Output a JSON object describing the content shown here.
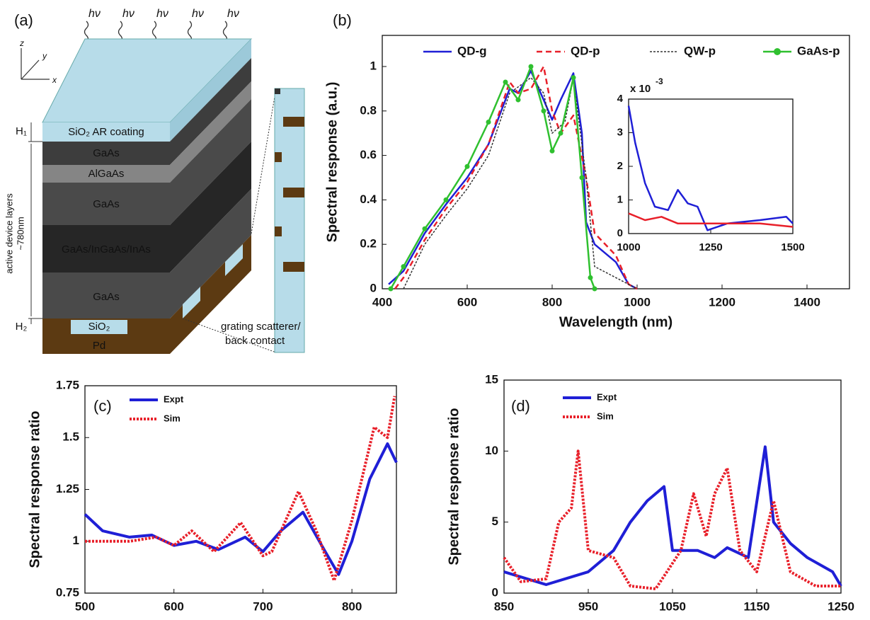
{
  "panel_a": {
    "label": "(a)",
    "photons": [
      "hν",
      "hν",
      "hν",
      "hν",
      "hν"
    ],
    "axes": [
      "z",
      "y",
      "x"
    ],
    "layers": [
      "SiO₂ AR coating",
      "GaAs",
      "AlGaAs",
      "GaAs",
      "GaAs/InGaAs/InAs",
      "GaAs"
    ],
    "oxide": "SiO₂",
    "metal": "Pd",
    "h1": "H₁",
    "h2": "H₂",
    "active_label": [
      "active device layers",
      "~780nm"
    ],
    "grating_label": [
      "grating scatterer/",
      "back contact"
    ]
  },
  "chart_data": [
    {
      "type": "line",
      "label": "(b)",
      "xlabel": "Wavelength (nm)",
      "ylabel": "Spectral response (a.u.)",
      "xlim": [
        400,
        1500
      ],
      "ylim": [
        0,
        1.14
      ],
      "xticks": [
        400,
        600,
        800,
        1000,
        1200,
        1400
      ],
      "yticks": [
        0,
        0.2,
        0.4,
        0.6,
        0.8,
        1
      ],
      "legend": "top",
      "series": [
        {
          "name": "QD-g",
          "color": "#1f1fd6",
          "dash": "solid",
          "x": [
            415,
            450,
            500,
            550,
            600,
            650,
            700,
            720,
            750,
            780,
            800,
            820,
            850,
            870,
            880,
            900,
            950,
            980,
            1000
          ],
          "values": [
            0.02,
            0.08,
            0.25,
            0.38,
            0.5,
            0.65,
            0.9,
            0.88,
            0.98,
            0.85,
            0.76,
            0.85,
            0.97,
            0.7,
            0.3,
            0.2,
            0.12,
            0.02,
            0
          ]
        },
        {
          "name": "QD-p",
          "color": "#e8202a",
          "dash": "dashed",
          "x": [
            430,
            450,
            500,
            550,
            600,
            650,
            700,
            720,
            750,
            780,
            800,
            820,
            850,
            880,
            900,
            950,
            980,
            1000
          ],
          "values": [
            0,
            0.05,
            0.22,
            0.36,
            0.48,
            0.65,
            0.93,
            0.88,
            0.9,
            1.0,
            0.8,
            0.7,
            0.78,
            0.5,
            0.25,
            0.15,
            0.02,
            0
          ]
        },
        {
          "name": "QW-p",
          "color": "#333333",
          "dash": "dotted",
          "x": [
            450,
            500,
            550,
            600,
            650,
            700,
            750,
            780,
            800,
            830,
            850,
            880,
            900,
            950,
            1000
          ],
          "values": [
            0,
            0.2,
            0.33,
            0.45,
            0.6,
            0.88,
            0.95,
            0.88,
            0.7,
            0.75,
            0.95,
            0.5,
            0.1,
            0.05,
            0
          ]
        },
        {
          "name": "GaAs-p",
          "color": "#2fc02f",
          "dash": "solid",
          "marker": "circle",
          "x": [
            420,
            450,
            500,
            550,
            600,
            650,
            690,
            720,
            750,
            780,
            800,
            820,
            850,
            870,
            890,
            900
          ],
          "values": [
            0,
            0.1,
            0.27,
            0.4,
            0.55,
            0.75,
            0.93,
            0.85,
            1.0,
            0.8,
            0.62,
            0.7,
            0.95,
            0.5,
            0.05,
            0
          ]
        }
      ]
    },
    {
      "type": "line",
      "xlim": [
        1000,
        1500
      ],
      "ylim": [
        0,
        4
      ],
      "xticks": [
        1000,
        1250,
        1500
      ],
      "yticks": [
        0,
        1,
        2,
        3,
        4
      ],
      "y_scale": "x 10",
      "y_scale_exponent": "-3",
      "series": [
        {
          "color": "#1f1fd6",
          "dash": "solid",
          "x": [
            1000,
            1020,
            1050,
            1080,
            1120,
            1150,
            1180,
            1210,
            1240,
            1300,
            1400,
            1480,
            1500
          ],
          "values": [
            3.8,
            2.7,
            1.5,
            0.8,
            0.7,
            1.3,
            0.9,
            0.8,
            0.1,
            0.3,
            0.4,
            0.5,
            0.3
          ]
        },
        {
          "color": "#e8202a",
          "dash": "solid",
          "x": [
            1000,
            1050,
            1100,
            1150,
            1200,
            1300,
            1400,
            1500
          ],
          "values": [
            0.6,
            0.4,
            0.5,
            0.3,
            0.3,
            0.3,
            0.3,
            0.2
          ]
        }
      ]
    },
    {
      "type": "line",
      "label": "(c)",
      "xlabel": "Wavelength (nm)",
      "ylabel": "Spectral response ratio",
      "xlim": [
        500,
        850
      ],
      "ylim": [
        0.75,
        1.75
      ],
      "xticks": [
        500,
        600,
        700,
        800
      ],
      "yticks": [
        0.75,
        1,
        1.25,
        1.5,
        1.75
      ],
      "legend": "upper left",
      "series": [
        {
          "name": "Expt",
          "color": "#1f1fd6",
          "dash": "solid",
          "x": [
            500,
            520,
            550,
            575,
            600,
            625,
            650,
            680,
            700,
            720,
            745,
            770,
            785,
            800,
            820,
            840,
            850
          ],
          "values": [
            1.13,
            1.05,
            1.02,
            1.03,
            0.98,
            1.0,
            0.96,
            1.02,
            0.95,
            1.05,
            1.14,
            0.95,
            0.84,
            1.0,
            1.3,
            1.47,
            1.38
          ]
        },
        {
          "name": "Sim",
          "color": "#e8202a",
          "dash": "dotted",
          "x": [
            500,
            530,
            550,
            580,
            600,
            620,
            645,
            675,
            700,
            710,
            740,
            760,
            780,
            800,
            825,
            840,
            848
          ],
          "values": [
            1.0,
            1.0,
            1.0,
            1.02,
            0.98,
            1.05,
            0.95,
            1.09,
            0.93,
            0.95,
            1.24,
            1.05,
            0.81,
            1.1,
            1.55,
            1.5,
            1.7
          ]
        }
      ]
    },
    {
      "type": "line",
      "label": "(d)",
      "xlabel": "Wavelength (nm)",
      "ylabel": "Spectral response ratio",
      "xlim": [
        850,
        1250
      ],
      "ylim": [
        0,
        15
      ],
      "xticks": [
        850,
        950,
        1050,
        1150,
        1250
      ],
      "yticks": [
        0,
        5,
        10,
        15
      ],
      "legend": "upper left",
      "series": [
        {
          "name": "Expt",
          "color": "#1f1fd6",
          "dash": "solid",
          "x": [
            850,
            900,
            950,
            980,
            1000,
            1020,
            1040,
            1050,
            1080,
            1100,
            1115,
            1140,
            1160,
            1170,
            1190,
            1210,
            1240,
            1250
          ],
          "values": [
            1.5,
            0.6,
            1.5,
            3,
            5,
            6.5,
            7.5,
            3,
            3,
            2.5,
            3.2,
            2.5,
            10.3,
            5,
            3.5,
            2.5,
            1.5,
            0.5
          ]
        },
        {
          "name": "Sim",
          "color": "#e8202a",
          "dash": "dotted",
          "x": [
            850,
            870,
            900,
            915,
            930,
            938,
            950,
            980,
            1000,
            1030,
            1060,
            1075,
            1090,
            1100,
            1115,
            1130,
            1150,
            1170,
            1190,
            1220,
            1250
          ],
          "values": [
            2.5,
            0.8,
            1.0,
            5,
            6,
            10,
            3,
            2.5,
            0.5,
            0.3,
            3,
            7,
            4,
            7,
            8.8,
            3,
            1.5,
            6.5,
            1.5,
            0.5,
            0.5
          ]
        }
      ]
    }
  ]
}
